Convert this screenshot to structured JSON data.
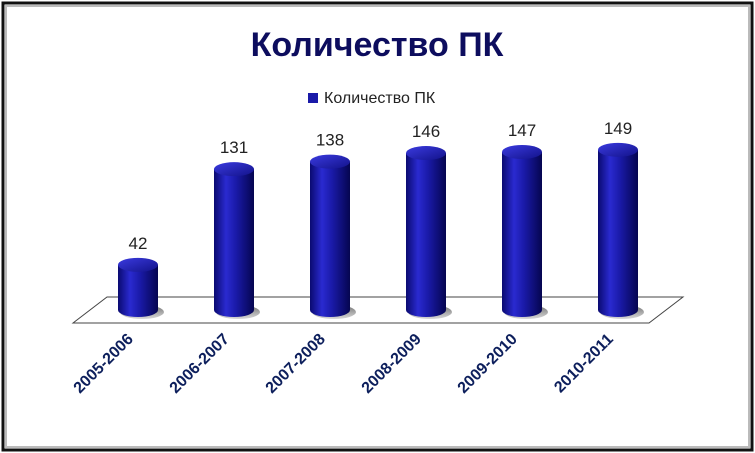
{
  "chart_data": {
    "type": "bar",
    "title": "Количество ПК",
    "categories": [
      "2005-2006",
      "2006-2007",
      "2007-2008",
      "2008-2009",
      "2009-2010",
      "2010-2011"
    ],
    "series": [
      {
        "name": "Количество ПК",
        "values": [
          42,
          131,
          138,
          146,
          147,
          149
        ]
      }
    ],
    "data_labels": [
      "42",
      "131",
      "138",
      "146",
      "147",
      "149"
    ],
    "legend_position": "top",
    "grid": false,
    "bar_shape": "3d-cylinder",
    "ylim": [
      0,
      160
    ],
    "colors": {
      "bar": "#1a1aa8",
      "bar_dark": "#050560",
      "bar_light": "#5a5af0",
      "title": "#0d0d5e",
      "tick_labels": "#0d1f5c",
      "border": "#000000"
    }
  }
}
